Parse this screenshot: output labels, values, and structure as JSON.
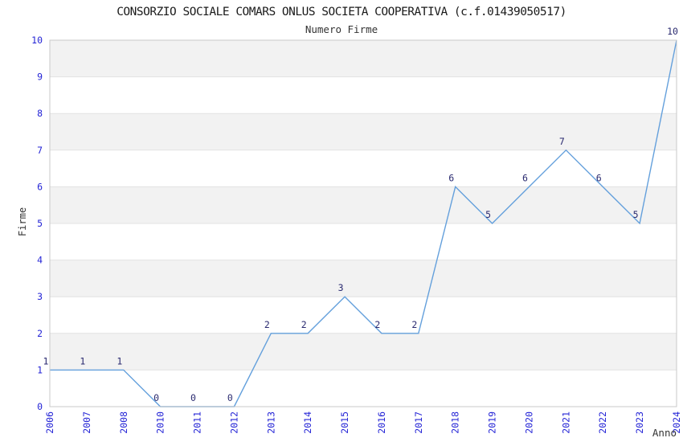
{
  "chart_data": {
    "type": "line",
    "title": "CONSORZIO SOCIALE COMARS ONLUS SOCIETA COOPERATIVA (c.f.01439050517)",
    "subtitle": "Numero Firme",
    "xlabel": "Anno",
    "ylabel": "Firme",
    "categories": [
      "2006",
      "2007",
      "2008",
      "2010",
      "2011",
      "2012",
      "2013",
      "2014",
      "2015",
      "2016",
      "2017",
      "2018",
      "2019",
      "2020",
      "2021",
      "2022",
      "2023",
      "2024"
    ],
    "values": [
      1,
      1,
      1,
      0,
      0,
      0,
      2,
      2,
      3,
      2,
      2,
      6,
      5,
      6,
      7,
      6,
      5,
      10
    ],
    "point_labels": true,
    "ylim": [
      0,
      10
    ],
    "ytick_step": 1,
    "grid": "horizontal-bands",
    "legend_position": "none",
    "colors": {
      "line": "#64a0dc",
      "tick_label": "#2424d6",
      "data_label": "#2a2a70",
      "title": "#1a1a1a",
      "axis_title": "#333333",
      "band": "#f2f2f2",
      "gridline": "#e2e2e2",
      "frame": "#c9c9c9",
      "background": "#ffffff"
    }
  }
}
